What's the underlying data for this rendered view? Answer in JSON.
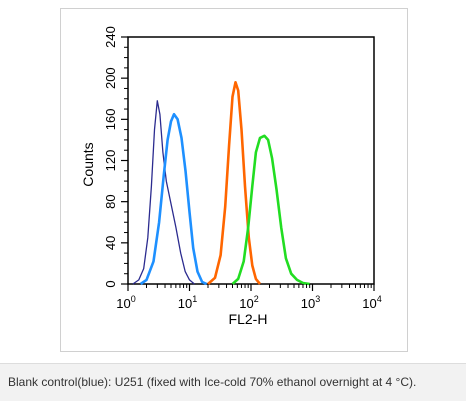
{
  "caption": "Blank control(blue): U251 (fixed with Ice-cold 70% ethanol overnight at 4 °C).",
  "chart_data": {
    "type": "line",
    "title": "",
    "xlabel": "FL2-H",
    "ylabel": "Counts",
    "x_scale": "log",
    "xlim": [
      1,
      10000
    ],
    "ylim": [
      0,
      240
    ],
    "x_ticks": [
      {
        "base": "10",
        "exp": "0",
        "value": 1
      },
      {
        "base": "10",
        "exp": "1",
        "value": 10
      },
      {
        "base": "10",
        "exp": "2",
        "value": 100
      },
      {
        "base": "10",
        "exp": "3",
        "value": 1000
      },
      {
        "base": "10",
        "exp": "4",
        "value": 10000
      }
    ],
    "y_ticks": [
      "0",
      "40",
      "80",
      "120",
      "160",
      "200",
      "240"
    ],
    "grid": false,
    "series": [
      {
        "color": "#2b2b8f",
        "points": [
          [
            1.2,
            0
          ],
          [
            1.5,
            4
          ],
          [
            1.8,
            15
          ],
          [
            2.1,
            45
          ],
          [
            2.4,
            95
          ],
          [
            2.7,
            150
          ],
          [
            3.0,
            178
          ],
          [
            3.3,
            165
          ],
          [
            3.7,
            128
          ],
          [
            4.2,
            100
          ],
          [
            5.0,
            78
          ],
          [
            6.0,
            55
          ],
          [
            7.2,
            30
          ],
          [
            8.5,
            12
          ],
          [
            10,
            4
          ],
          [
            12,
            0
          ]
        ]
      },
      {
        "color": "#1e90ff",
        "points": [
          [
            1.6,
            0
          ],
          [
            2.0,
            4
          ],
          [
            2.6,
            22
          ],
          [
            3.2,
            60
          ],
          [
            3.8,
            105
          ],
          [
            4.4,
            140
          ],
          [
            5.0,
            158
          ],
          [
            5.6,
            165
          ],
          [
            6.4,
            160
          ],
          [
            7.4,
            142
          ],
          [
            8.6,
            110
          ],
          [
            10,
            70
          ],
          [
            11.5,
            35
          ],
          [
            13.5,
            12
          ],
          [
            16,
            2
          ],
          [
            19,
            0
          ]
        ]
      },
      {
        "color": "#ff6600",
        "points": [
          [
            20,
            0
          ],
          [
            26,
            6
          ],
          [
            32,
            28
          ],
          [
            38,
            75
          ],
          [
            44,
            135
          ],
          [
            50,
            182
          ],
          [
            56,
            196
          ],
          [
            62,
            188
          ],
          [
            70,
            150
          ],
          [
            80,
            95
          ],
          [
            92,
            45
          ],
          [
            105,
            18
          ],
          [
            120,
            5
          ],
          [
            140,
            0
          ]
        ]
      },
      {
        "color": "#22dd22",
        "points": [
          [
            50,
            0
          ],
          [
            62,
            5
          ],
          [
            76,
            22
          ],
          [
            90,
            55
          ],
          [
            105,
            95
          ],
          [
            120,
            128
          ],
          [
            140,
            142
          ],
          [
            165,
            144
          ],
          [
            190,
            140
          ],
          [
            220,
            122
          ],
          [
            260,
            92
          ],
          [
            310,
            55
          ],
          [
            370,
            25
          ],
          [
            450,
            10
          ],
          [
            560,
            4
          ],
          [
            700,
            1
          ],
          [
            900,
            0
          ]
        ]
      }
    ]
  }
}
